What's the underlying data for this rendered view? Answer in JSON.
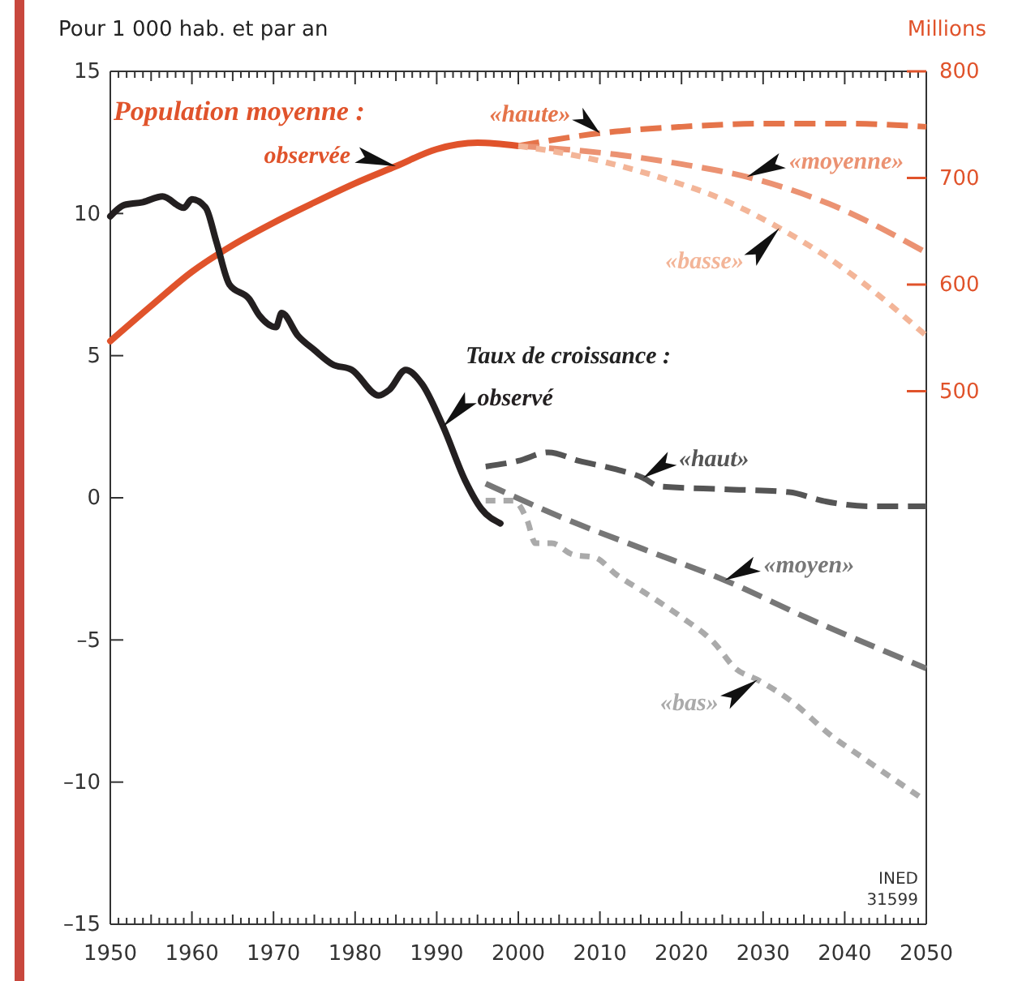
{
  "chart_data": {
    "type": "line",
    "ylabel": "Pour 1 000 hab. et par an",
    "y2label": "Millions",
    "annotations": [
      "Population moyenne :",
      "Taux de croissance :",
      "INED",
      "31599"
    ],
    "xlim": [
      1950,
      2050
    ],
    "xticks": [
      1950,
      {
        "value": 1951,
        "label": null
      },
      {
        "value": 1952,
        "label": null
      },
      {
        "value": 1953,
        "label": null
      },
      {
        "value": 1954,
        "label": null
      },
      {
        "value": 1955,
        "label": null
      },
      {
        "value": 1956,
        "label": null
      },
      {
        "value": 1957,
        "label": null
      },
      {
        "value": 1958,
        "label": null
      },
      {
        "value": 1959,
        "label": null
      },
      1960,
      {
        "value": 1961,
        "label": null
      },
      {
        "value": 1962,
        "label": null
      },
      {
        "value": 1963,
        "label": null
      },
      {
        "value": 1964,
        "label": null
      },
      {
        "value": 1965,
        "label": null
      },
      {
        "value": 1966,
        "label": null
      },
      {
        "value": 1967,
        "label": null
      },
      {
        "value": 1968,
        "label": null
      },
      {
        "value": 1969,
        "label": null
      },
      1970,
      {
        "value": 1971,
        "label": null
      },
      {
        "value": 1972,
        "label": null
      },
      {
        "value": 1973,
        "label": null
      },
      {
        "value": 1974,
        "label": null
      },
      {
        "value": 1975,
        "label": null
      },
      {
        "value": 1976,
        "label": null
      },
      {
        "value": 1977,
        "label": null
      },
      {
        "value": 1978,
        "label": null
      },
      {
        "value": 1979,
        "label": null
      },
      1980,
      {
        "value": 1981,
        "label": null
      },
      {
        "value": 1982,
        "label": null
      },
      {
        "value": 1983,
        "label": null
      },
      {
        "value": 1984,
        "label": null
      },
      {
        "value": 1985,
        "label": null
      },
      {
        "value": 1986,
        "label": null
      },
      {
        "value": 1987,
        "label": null
      },
      {
        "value": 1988,
        "label": null
      },
      {
        "value": 1989,
        "label": null
      },
      1990,
      {
        "value": 1991,
        "label": null
      },
      {
        "value": 1992,
        "label": null
      },
      {
        "value": 1993,
        "label": null
      },
      {
        "value": 1994,
        "label": null
      },
      {
        "value": 1995,
        "label": null
      },
      {
        "value": 1996,
        "label": null
      },
      {
        "value": 1997,
        "label": null
      },
      {
        "value": 1998,
        "label": null
      },
      {
        "value": 1999,
        "label": null
      },
      2000,
      {
        "value": 2001,
        "label": null
      },
      {
        "value": 2002,
        "label": null
      },
      {
        "value": 2003,
        "label": null
      },
      {
        "value": 2004,
        "label": null
      },
      {
        "value": 2005,
        "label": null
      },
      {
        "value": 2006,
        "label": null
      },
      {
        "value": 2007,
        "label": null
      },
      {
        "value": 2008,
        "label": null
      },
      {
        "value": 2009,
        "label": null
      },
      2010,
      {
        "value": 2011,
        "label": null
      },
      {
        "value": 2012,
        "label": null
      },
      {
        "value": 2013,
        "label": null
      },
      {
        "value": 2014,
        "label": null
      },
      {
        "value": 2015,
        "label": null
      },
      {
        "value": 2016,
        "label": null
      },
      {
        "value": 2017,
        "label": null
      },
      {
        "value": 2018,
        "label": null
      },
      {
        "value": 2019,
        "label": null
      },
      2020,
      {
        "value": 2021,
        "label": null
      },
      {
        "value": 2022,
        "label": null
      },
      {
        "value": 2023,
        "label": null
      },
      {
        "value": 2024,
        "label": null
      },
      {
        "value": 2025,
        "label": null
      },
      {
        "value": 2026,
        "label": null
      },
      {
        "value": 2027,
        "label": null
      },
      {
        "value": 2028,
        "label": null
      },
      {
        "value": 2029,
        "label": null
      },
      2030,
      {
        "value": 2031,
        "label": null
      },
      {
        "value": 2032,
        "label": null
      },
      {
        "value": 2033,
        "label": null
      },
      {
        "value": 2034,
        "label": null
      },
      {
        "value": 2035,
        "label": null
      },
      {
        "value": 2036,
        "label": null
      },
      {
        "value": 2037,
        "label": null
      },
      {
        "value": 2038,
        "label": null
      },
      {
        "value": 2039,
        "label": null
      },
      2040,
      {
        "value": 2041,
        "label": null
      },
      {
        "value": 2042,
        "label": null
      },
      {
        "value": 2043,
        "label": null
      },
      {
        "value": 2044,
        "label": null
      },
      {
        "value": 2045,
        "label": null
      },
      {
        "value": 2046,
        "label": null
      },
      {
        "value": 2047,
        "label": null
      },
      {
        "value": 2048,
        "label": null
      },
      {
        "value": 2049,
        "label": null
      },
      2050
    ],
    "ylim": [
      -15,
      15
    ],
    "yticks": [
      15,
      10,
      5,
      0,
      {
        "value": -5,
        "label": "–5"
      },
      {
        "value": -10,
        "label": "–10"
      },
      {
        "value": -15,
        "label": "–15"
      }
    ],
    "y2lim": [
      0,
      800
    ],
    "y2ticks": [
      500,
      600,
      700,
      800
    ],
    "series": [
      {
        "name": "observée",
        "color": "#e0532b",
        "axis": "y2",
        "line_style": "solid",
        "x": [
          1950,
          1955,
          1960,
          1965,
          1970,
          1975,
          1980,
          1985,
          1990,
          1995,
          2000
        ],
        "values": [
          547,
          580,
          612,
          637,
          658,
          677,
          695,
          711,
          727,
          733,
          730
        ]
      },
      {
        "name": "«haute»",
        "color": "#e5744a",
        "axis": "y2",
        "line_style": "dashed",
        "x": [
          2000,
          2010,
          2020,
          2030,
          2040,
          2050
        ],
        "values": [
          730,
          742,
          748,
          751,
          751,
          748
        ]
      },
      {
        "name": "«moyenne»",
        "color": "#eb9272",
        "axis": "y2",
        "line_style": "dashed",
        "x": [
          2000,
          2012,
          2020,
          2028,
          2038,
          2050
        ],
        "values": [
          730,
          722,
          713,
          701,
          676,
          630
        ]
      },
      {
        "name": "«basse»",
        "color": "#f3b598",
        "axis": "y2",
        "line_style": "dotted",
        "x": [
          2000,
          2005,
          2010,
          2018,
          2025,
          2032,
          2038,
          2042,
          2050
        ],
        "values": [
          730,
          724,
          716,
          699,
          680,
          653,
          625,
          603,
          552
        ]
      },
      {
        "name": "observé",
        "color": "#231f20",
        "line_style": "solid",
        "x": [
          1950,
          1951.7,
          1954,
          1956.4,
          1959,
          1960,
          1961.7,
          1963,
          1964.6,
          1967,
          1968.3,
          1970.3,
          1971,
          1973,
          1975,
          1977.2,
          1979.6,
          1982.9,
          1984.2,
          1986.2,
          1988.2,
          1990.8,
          1993.5,
          1995.5,
          1997.8
        ],
        "values": [
          9.9,
          10.3,
          10.4,
          10.6,
          10.2,
          10.5,
          10.2,
          9.0,
          7.5,
          7.0,
          6.4,
          6.0,
          6.5,
          5.7,
          5.2,
          4.7,
          4.5,
          3.6,
          3.8,
          4.5,
          4.0,
          2.5,
          0.6,
          -0.4,
          -0.9
        ]
      },
      {
        "name": "«haut»",
        "color": "#555555",
        "line_style": "dashed",
        "x": [
          1996,
          2000,
          2003.7,
          2007.4,
          2012,
          2015.3,
          2017.3,
          2025.3,
          2033.2,
          2037.2,
          2043.2,
          2050
        ],
        "values": [
          1.1,
          1.3,
          1.6,
          1.3,
          1.0,
          0.7,
          0.4,
          0.3,
          0.2,
          -0.1,
          -0.3,
          -0.3
        ]
      },
      {
        "name": "«moyen»",
        "color": "#777777",
        "line_style": "dashed",
        "x": [
          1996,
          2005.4,
          2015.3,
          2025.3,
          2035.2,
          2050
        ],
        "values": [
          0.5,
          -0.7,
          -1.8,
          -2.9,
          -4.2,
          -6.0
        ]
      },
      {
        "name": "«bas»",
        "color": "#aaaaaa",
        "line_style": "dotted",
        "x": [
          1996,
          1999.4,
          2001.1,
          2002.1,
          2004.1,
          2006.7,
          2009.4,
          2012,
          2015.3,
          2020,
          2024,
          2026.6,
          2029.3,
          2033.2,
          2038.5,
          2042.5,
          2044,
          2049.1
        ],
        "values": [
          -0.1,
          -0.1,
          -0.8,
          -1.6,
          -1.6,
          -2.0,
          -2.1,
          -2.7,
          -3.3,
          -4.2,
          -5.1,
          -6.0,
          -6.4,
          -7.1,
          -8.4,
          -9.2,
          -9.5,
          -10.5
        ]
      }
    ]
  }
}
